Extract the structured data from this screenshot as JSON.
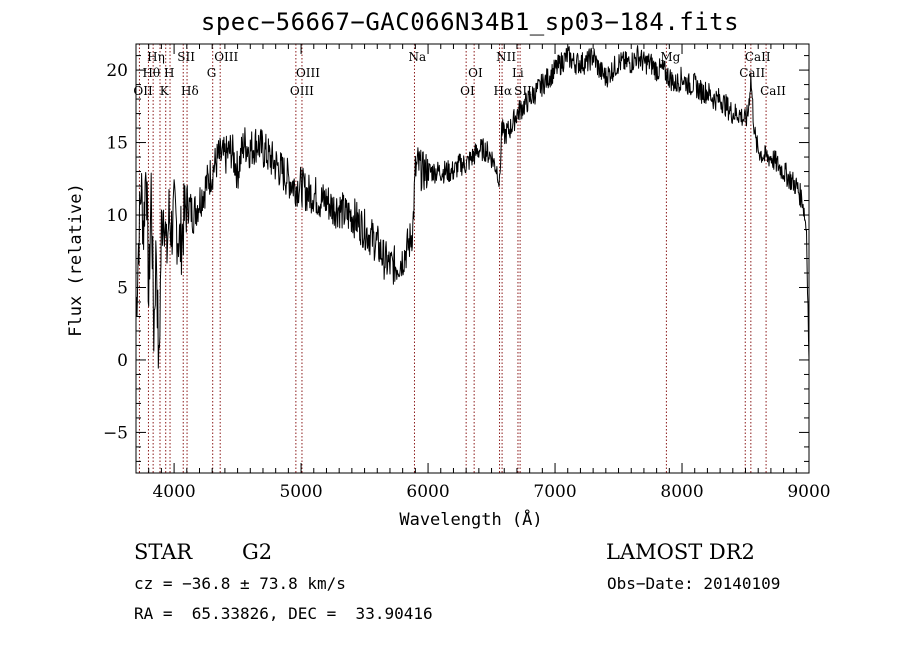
{
  "chart_data": {
    "type": "line",
    "title": "spec−56667−GAC066N34B1_sp03−184.fits",
    "xlabel": "Wavelength (Å)",
    "ylabel": "Flux (relative)",
    "xlim": [
      3700,
      9000
    ],
    "ylim": [
      -7.8,
      21.8
    ],
    "xticks": [
      4000,
      5000,
      6000,
      7000,
      8000,
      9000
    ],
    "yticks": [
      -5,
      0,
      5,
      10,
      15,
      20
    ],
    "ytick_labels": [
      "−5",
      "0",
      "5",
      "10",
      "15",
      "20"
    ],
    "series": [
      {
        "name": "flux",
        "x": [
          3700,
          3720,
          3740,
          3760,
          3780,
          3800,
          3820,
          3840,
          3860,
          3880,
          3900,
          3920,
          3940,
          3960,
          3980,
          4000,
          4050,
          4100,
          4150,
          4200,
          4250,
          4300,
          4350,
          4400,
          4450,
          4500,
          4550,
          4600,
          4650,
          4700,
          4750,
          4800,
          4850,
          4900,
          4950,
          5000,
          5050,
          5100,
          5150,
          5200,
          5250,
          5300,
          5350,
          5400,
          5450,
          5500,
          5550,
          5600,
          5650,
          5700,
          5750,
          5800,
          5850,
          5880,
          5900,
          5920,
          5950,
          6000,
          6050,
          6100,
          6150,
          6200,
          6250,
          6300,
          6350,
          6400,
          6450,
          6500,
          6550,
          6563,
          6580,
          6600,
          6650,
          6700,
          6750,
          6800,
          6850,
          6900,
          6950,
          7000,
          7050,
          7100,
          7150,
          7200,
          7250,
          7300,
          7350,
          7400,
          7450,
          7500,
          7550,
          7600,
          7650,
          7700,
          7750,
          7800,
          7850,
          7900,
          7950,
          8000,
          8050,
          8100,
          8150,
          8200,
          8250,
          8300,
          8350,
          8400,
          8450,
          8500,
          8520,
          8542,
          8560,
          8580,
          8600,
          8650,
          8700,
          8750,
          8800,
          8850,
          8900,
          8950,
          8980,
          9000
        ],
        "values": [
          3,
          8,
          12,
          9,
          14,
          4,
          12,
          2,
          8,
          -1,
          9,
          11,
          7,
          10,
          9,
          10,
          8,
          11,
          10,
          11,
          12,
          13,
          14,
          14,
          14.5,
          13,
          15,
          14.5,
          15,
          14.5,
          14,
          13.5,
          13,
          12.5,
          12,
          12,
          11.5,
          11.5,
          11,
          11,
          10.5,
          10.5,
          10,
          10,
          9.5,
          9,
          8.5,
          8,
          7,
          6.5,
          6.5,
          7,
          8,
          9,
          13,
          13.5,
          13,
          13,
          13,
          13,
          13,
          13,
          13.5,
          13.5,
          14,
          14.5,
          14.5,
          14,
          13,
          12,
          16,
          15.5,
          16,
          17,
          17.5,
          18,
          18.5,
          19,
          19.5,
          20,
          20.5,
          21,
          20.5,
          20.5,
          20.5,
          21,
          20,
          19.5,
          20,
          20.5,
          20.5,
          20.5,
          21,
          20.5,
          20.5,
          20,
          20,
          19.5,
          19,
          19.5,
          19,
          19,
          18.5,
          18.5,
          18,
          18,
          17.5,
          17,
          17,
          16.5,
          17,
          19.5,
          17,
          15,
          14.5,
          14,
          14,
          13.5,
          13,
          12.5,
          12,
          11,
          9,
          0
        ]
      }
    ],
    "line_labels": [
      {
        "text": "Hη",
        "x": 3835,
        "row": 1
      },
      {
        "text": "Hθ",
        "x": 3798,
        "row": 2
      },
      {
        "text": "OII",
        "x": 3727,
        "row": 3
      },
      {
        "text": "SII",
        "x": 4072,
        "row": 1
      },
      {
        "text": "H",
        "x": 3968,
        "row": 2
      },
      {
        "text": "K",
        "x": 3934,
        "row": 3
      },
      {
        "text": "Hδ",
        "x": 4102,
        "row": 3
      },
      {
        "text": "OIII",
        "x": 4363,
        "row": 1
      },
      {
        "text": "G",
        "x": 4304,
        "row": 2
      },
      {
        "text": "OIII",
        "x": 5007,
        "row": 2
      },
      {
        "text": "OIII",
        "x": 4959,
        "row": 3
      },
      {
        "text": "Na",
        "x": 5893,
        "row": 1
      },
      {
        "text": "OI",
        "x": 6363,
        "row": 2
      },
      {
        "text": "OI",
        "x": 6300,
        "row": 3
      },
      {
        "text": "NII",
        "x": 6583,
        "row": 1
      },
      {
        "text": "Hα",
        "x": 6563,
        "row": 3
      },
      {
        "text": "Li",
        "x": 6708,
        "row": 2
      },
      {
        "text": "SII",
        "x": 6725,
        "row": 3
      },
      {
        "text": "Mg",
        "x": 7877,
        "row": 1
      },
      {
        "text": "CaII",
        "x": 8542,
        "row": 1
      },
      {
        "text": "CaII",
        "x": 8498,
        "row": 2
      },
      {
        "text": "CaII",
        "x": 8662,
        "row": 3
      }
    ],
    "line_positions": [
      3727,
      3798,
      3835,
      3889,
      3934,
      3968,
      4072,
      4102,
      4304,
      4363,
      4959,
      5007,
      5893,
      6300,
      6363,
      6563,
      6583,
      6708,
      6725,
      7877,
      8498,
      8542,
      8662
    ],
    "colors": {
      "line_markers": "#8b1a1a",
      "series": "#000000",
      "axes": "#000000"
    }
  },
  "info": {
    "object_class": "STAR",
    "subclass": "G2",
    "survey": "LAMOST DR2",
    "redshift": "cz = −36.8 ± 73.8 km/s",
    "obs_date": "Obs−Date: 20140109",
    "coords": "RA =  65.33826, DEC =  33.90416"
  }
}
